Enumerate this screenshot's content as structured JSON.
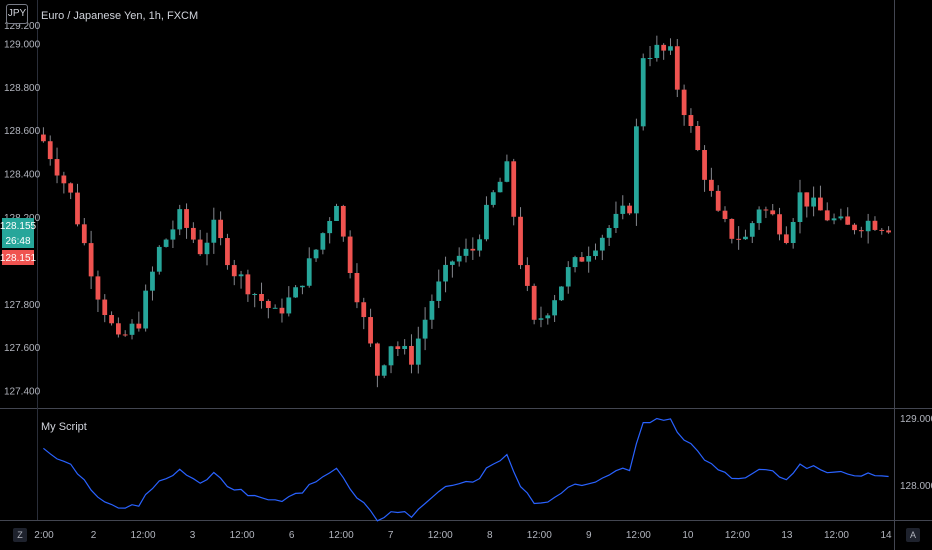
{
  "header": {
    "symbol_badge": "JPY",
    "title": "Euro / Japanese Yen, 1h, FXCM"
  },
  "indicator": {
    "name": "My Script"
  },
  "price_axis": {
    "ticks": [
      "129.000",
      "128.800",
      "128.600",
      "128.400",
      "128.200",
      "127.800",
      "127.600",
      "127.400"
    ],
    "partial_top_label": "129.200",
    "current_price": "128.155",
    "countdown": "26:48",
    "last_price": "128.151"
  },
  "indicator_axis": {
    "ticks": [
      "129.000",
      "128.000"
    ]
  },
  "time_axis": {
    "labels": [
      "2:00",
      "2",
      "12:00",
      "3",
      "12:00",
      "6",
      "12:00",
      "7",
      "12:00",
      "8",
      "12:00",
      "9",
      "12:00",
      "10",
      "12:00",
      "13",
      "12:00",
      "14"
    ]
  },
  "corner_buttons": {
    "zoom": "Z",
    "auto": "A"
  },
  "colors": {
    "background": "#000000",
    "up": "#26a69a",
    "down": "#ef5350",
    "line": "#2962ff",
    "wick": "#b2b5be",
    "divider": "#434651",
    "price_badge": "#26a69a",
    "last_badge": "#ef5350"
  },
  "chart_data": [
    {
      "type": "candlestick",
      "title": "Euro / Japanese Yen, 1h, FXCM",
      "x": [
        "2:00",
        "2",
        "12:00",
        "3",
        "12:00",
        "6",
        "12:00",
        "7",
        "12:00",
        "8",
        "12:00",
        "9",
        "12:00",
        "10",
        "12:00",
        "13",
        "12:00",
        "14"
      ],
      "ylim": [
        127.32,
        129.2
      ],
      "close_path": [
        [
          0,
          128.55
        ],
        [
          4,
          128.3
        ],
        [
          8,
          127.85
        ],
        [
          11,
          127.62
        ],
        [
          14,
          127.72
        ],
        [
          17,
          128.05
        ],
        [
          20,
          128.2
        ],
        [
          23,
          128.05
        ],
        [
          25,
          128.15
        ],
        [
          28,
          127.95
        ],
        [
          31,
          127.85
        ],
        [
          34,
          127.75
        ],
        [
          37,
          127.85
        ],
        [
          40,
          128.05
        ],
        [
          43,
          128.28
        ],
        [
          44,
          128.1
        ],
        [
          47,
          127.72
        ],
        [
          49,
          127.48
        ],
        [
          51,
          127.62
        ],
        [
          54,
          127.55
        ],
        [
          57,
          127.82
        ],
        [
          60,
          128.0
        ],
        [
          63,
          128.05
        ],
        [
          66,
          128.3
        ],
        [
          68,
          128.42
        ],
        [
          70,
          128.0
        ],
        [
          72,
          127.7
        ],
        [
          74,
          127.78
        ],
        [
          77,
          127.95
        ],
        [
          80,
          128.05
        ],
        [
          83,
          128.15
        ],
        [
          86,
          128.25
        ],
        [
          88,
          128.95
        ],
        [
          90,
          128.97
        ],
        [
          92,
          128.95
        ],
        [
          93,
          128.8
        ],
        [
          95,
          128.6
        ],
        [
          97,
          128.4
        ],
        [
          99,
          128.2
        ],
        [
          101,
          128.12
        ],
        [
          103,
          128.1
        ],
        [
          105,
          128.25
        ],
        [
          107,
          128.2
        ],
        [
          109,
          128.12
        ],
        [
          111,
          128.3
        ],
        [
          113,
          128.25
        ],
        [
          115,
          128.2
        ],
        [
          118,
          128.15
        ],
        [
          121,
          128.18
        ],
        [
          124,
          128.16
        ]
      ],
      "total_candles": 125,
      "ylabel": ""
    },
    {
      "type": "line",
      "title": "My Script",
      "ylim": [
        127.48,
        129.12
      ],
      "ticks": [
        129.0,
        128.0
      ],
      "note_series_shape": "close"
    }
  ]
}
